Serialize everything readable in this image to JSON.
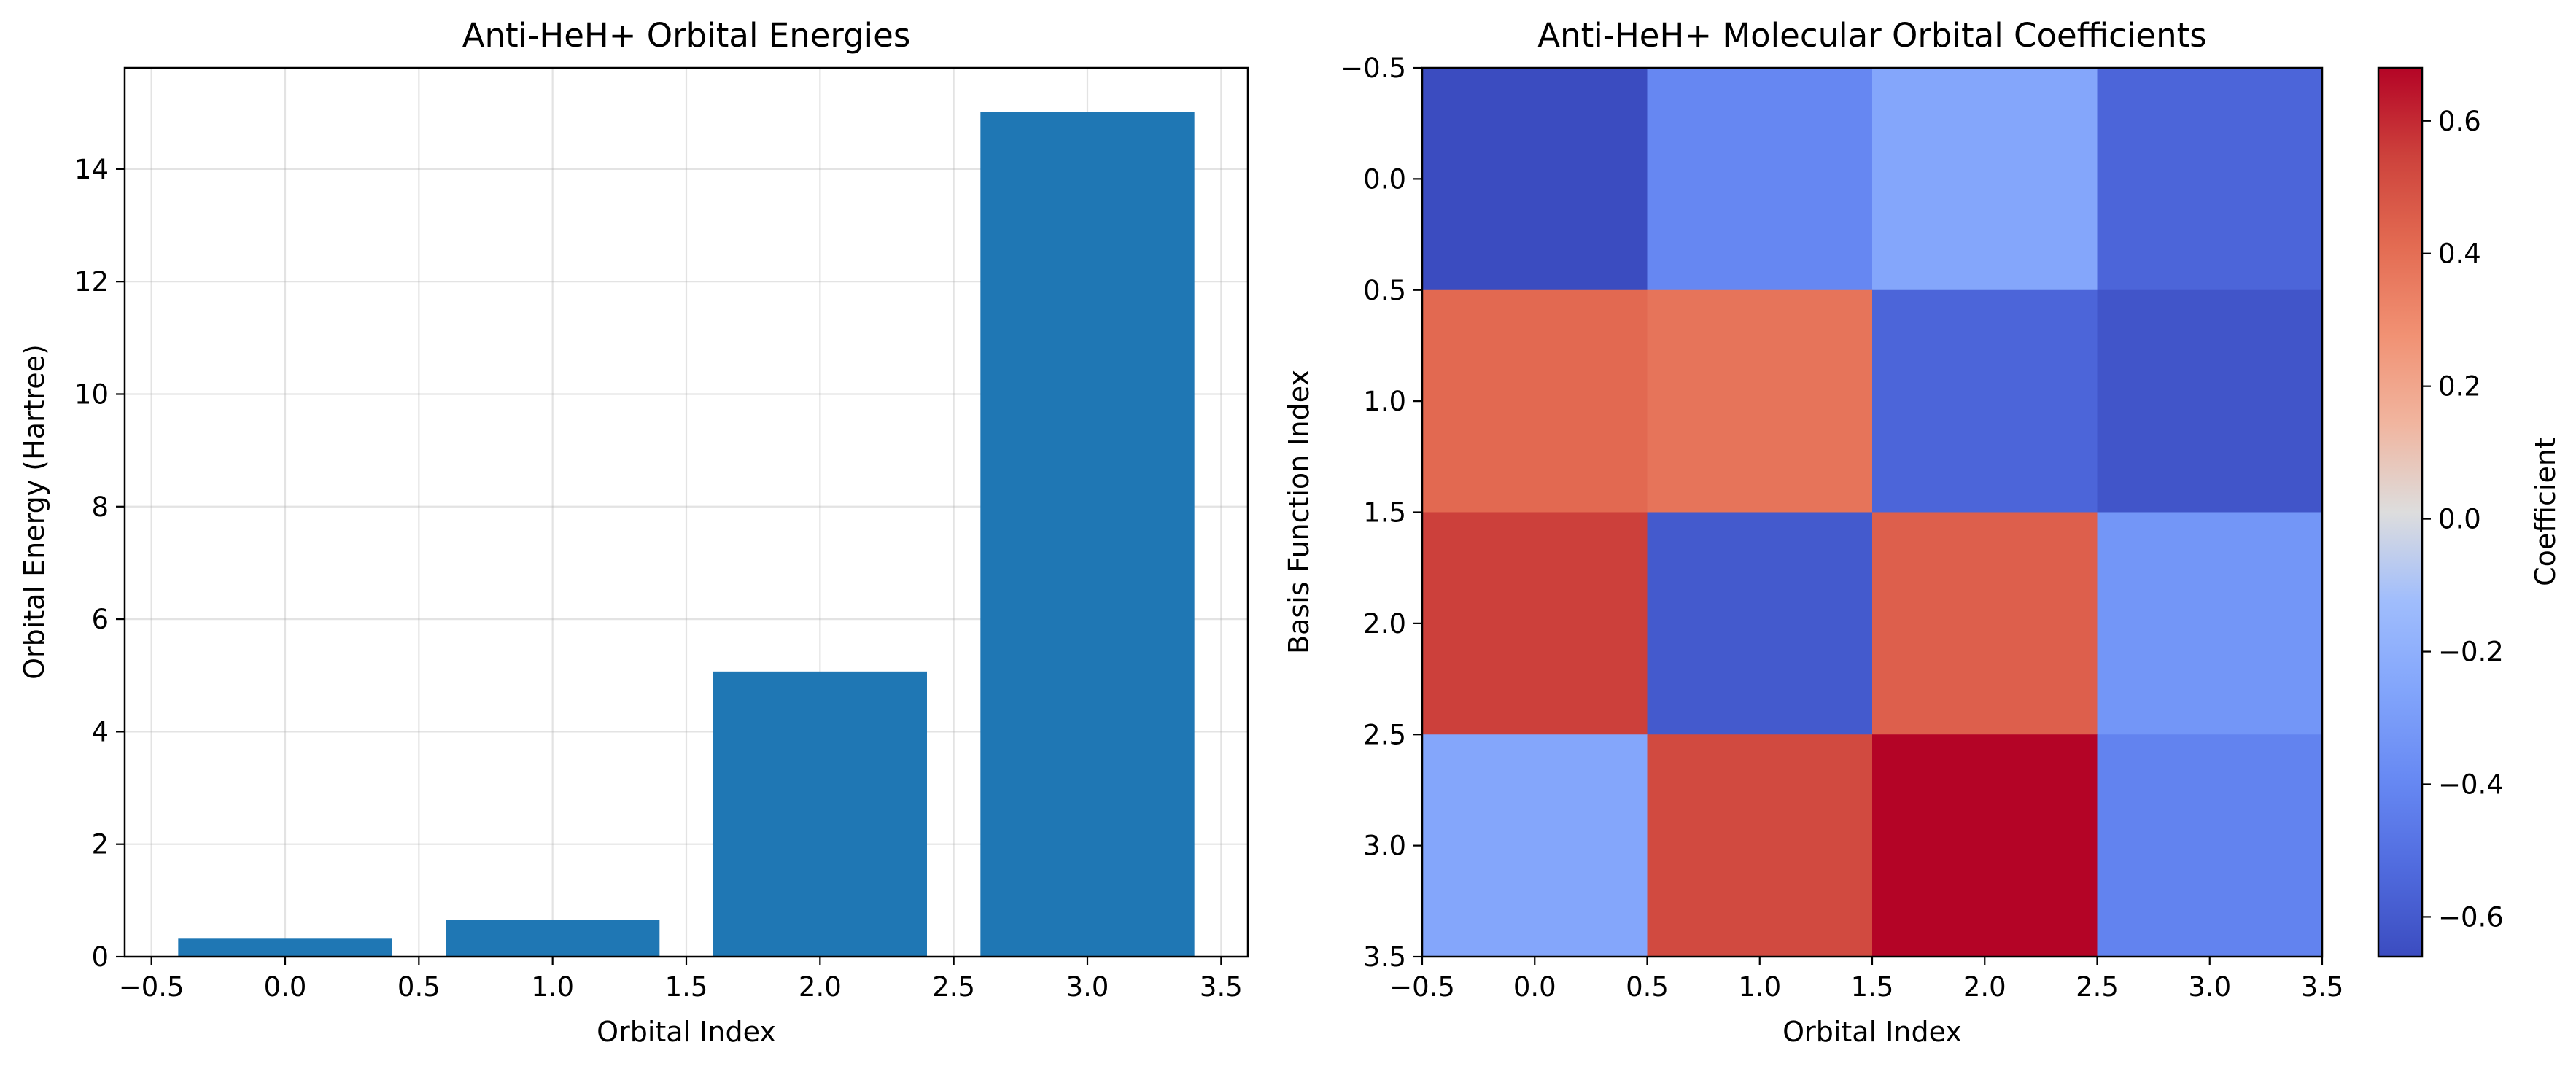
{
  "chart_data": [
    {
      "type": "bar",
      "title": "Anti-HeH+ Orbital Energies",
      "xlabel": "Orbital Index",
      "ylabel": "Orbital Energy (Hartree)",
      "x": [
        0,
        1,
        2,
        3
      ],
      "values": [
        0.32,
        0.65,
        5.07,
        15.02
      ],
      "bar_color": "#1f77b4",
      "xlim": [
        -0.6,
        3.6
      ],
      "ylim": [
        0,
        15.8
      ],
      "xticks": [
        "−0.5",
        "0.0",
        "0.5",
        "1.0",
        "1.5",
        "2.0",
        "2.5",
        "3.0",
        "3.5"
      ],
      "yticks": [
        "0",
        "2",
        "4",
        "6",
        "8",
        "10",
        "12",
        "14"
      ],
      "grid": true
    },
    {
      "type": "heatmap",
      "title": "Anti-HeH+ Molecular Orbital Coefficients",
      "xlabel": "Orbital Index",
      "ylabel": "Basis Function Index",
      "xlim": [
        -0.5,
        3.5
      ],
      "ylim": [
        3.5,
        -0.5
      ],
      "xticks": [
        "−0.5",
        "0.0",
        "0.5",
        "1.0",
        "1.5",
        "2.0",
        "2.5",
        "3.0",
        "3.5"
      ],
      "yticks": [
        "−0.5",
        "0.0",
        "0.5",
        "1.0",
        "1.5",
        "2.0",
        "2.5",
        "3.0",
        "3.5"
      ],
      "matrix": [
        [
          -0.66,
          -0.4,
          -0.25,
          -0.55
        ],
        [
          0.42,
          0.38,
          -0.55,
          -0.62
        ],
        [
          0.55,
          -0.6,
          0.45,
          -0.33
        ],
        [
          -0.25,
          0.52,
          0.68,
          -0.42
        ]
      ],
      "colormap": "coolwarm",
      "clim": [
        -0.66,
        0.68
      ],
      "colorbar": {
        "label": "Coefficient",
        "ticks": [
          "−0.6",
          "−0.4",
          "−0.2",
          "0.0",
          "0.2",
          "0.4",
          "0.6"
        ]
      }
    }
  ]
}
